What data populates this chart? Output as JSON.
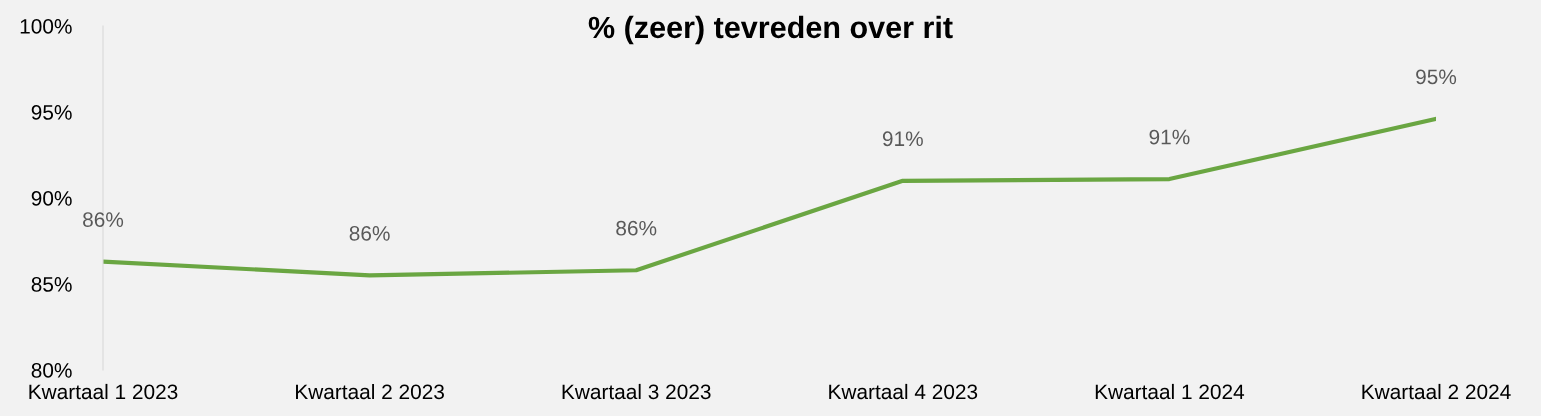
{
  "chart_data": {
    "type": "line",
    "title": "% (zeer) tevreden over rit",
    "categories": [
      "Kwartaal 1 2023",
      "Kwartaal 2 2023",
      "Kwartaal 3 2023",
      "Kwartaal 4 2023",
      "Kwartaal 1 2024",
      "Kwartaal 2 2024"
    ],
    "series": [
      {
        "color": "#6aa642",
        "values": [
          86.3,
          85.5,
          85.8,
          91.0,
          91.1,
          94.6
        ],
        "value_labels": [
          "86%",
          "86%",
          "86%",
          "91%",
          "91%",
          "95%"
        ]
      }
    ],
    "ylim": [
      80,
      100
    ],
    "yticks": [
      {
        "value": 80,
        "label": "80%"
      },
      {
        "value": 85,
        "label": "85%"
      },
      {
        "value": 90,
        "label": "90%"
      },
      {
        "value": 95,
        "label": "95%"
      },
      {
        "value": 100,
        "label": "100%"
      }
    ],
    "marker": "none",
    "line_style": "solid"
  }
}
